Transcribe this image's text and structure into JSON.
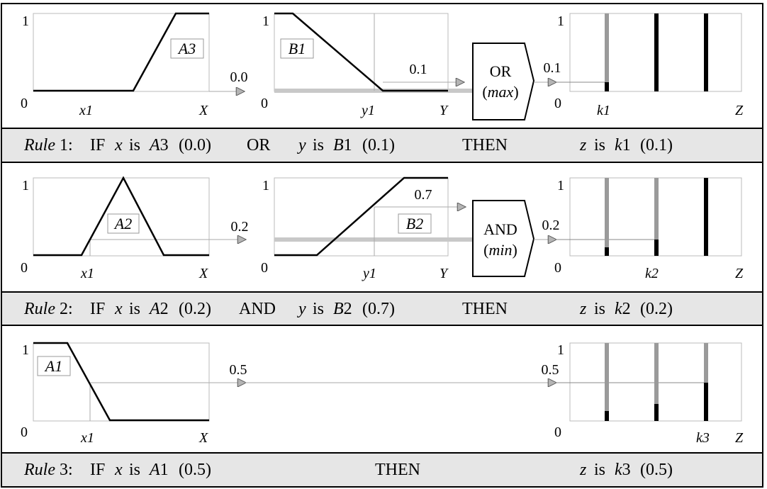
{
  "axis": {
    "one": "1",
    "zero": "0",
    "x": "X",
    "y": "Y",
    "z": "Z"
  },
  "rows": [
    {
      "x_tick": "x1",
      "input_set": "A3",
      "input_value": "0.0",
      "y_tick": "y1",
      "second_set": "B1",
      "second_value": "0.1",
      "operator_name": "OR",
      "operator_fn": "max",
      "output_value": "0.1",
      "z_tick": "k1",
      "rule": {
        "word": "Rule",
        "number": " 1:",
        "if": "IF",
        "var1": "x",
        "is1": "is",
        "set1": "A",
        "set1_n": "3",
        "val1": "(0.0)",
        "op": "OR",
        "var2": "y",
        "is2": "is",
        "set2": "B",
        "set2_n": "1",
        "val2": "(0.1)",
        "then": "THEN",
        "var3": "z",
        "is3": "is",
        "set3": "k",
        "set3_n": "1",
        "val3": "(0.1)"
      }
    },
    {
      "x_tick": "x1",
      "input_set": "A2",
      "input_value": "0.2",
      "y_tick": "y1",
      "second_set": "B2",
      "second_value": "0.7",
      "operator_name": "AND",
      "operator_fn": "min",
      "output_value": "0.2",
      "z_tick": "k2",
      "rule": {
        "word": "Rule",
        "number": " 2:",
        "if": "IF",
        "var1": "x",
        "is1": "is",
        "set1": "A",
        "set1_n": "2",
        "val1": "(0.2)",
        "op": "AND",
        "var2": "y",
        "is2": "is",
        "set2": "B",
        "set2_n": "2",
        "val2": "(0.7)",
        "then": "THEN",
        "var3": "z",
        "is3": "is",
        "set3": "k",
        "set3_n": "2",
        "val3": "(0.2)"
      }
    },
    {
      "x_tick": "x1",
      "input_set": "A1",
      "input_value": "0.5",
      "output_value": "0.5",
      "z_tick": "k3",
      "rule": {
        "word": "Rule",
        "number": " 3:",
        "if": "IF",
        "var1": "x",
        "is1": "is",
        "set1": "A",
        "set1_n": "1",
        "val1": "(0.5)",
        "then": "THEN",
        "var3": "z",
        "is3": "is",
        "set3": "k",
        "set3_n": "3",
        "val3": "(0.5)"
      }
    }
  ],
  "colors": {
    "line": "#000000",
    "gray_line": "#9a9a9a",
    "band_fill": "#e6e6e6",
    "arrow": "#b4b4b4"
  }
}
